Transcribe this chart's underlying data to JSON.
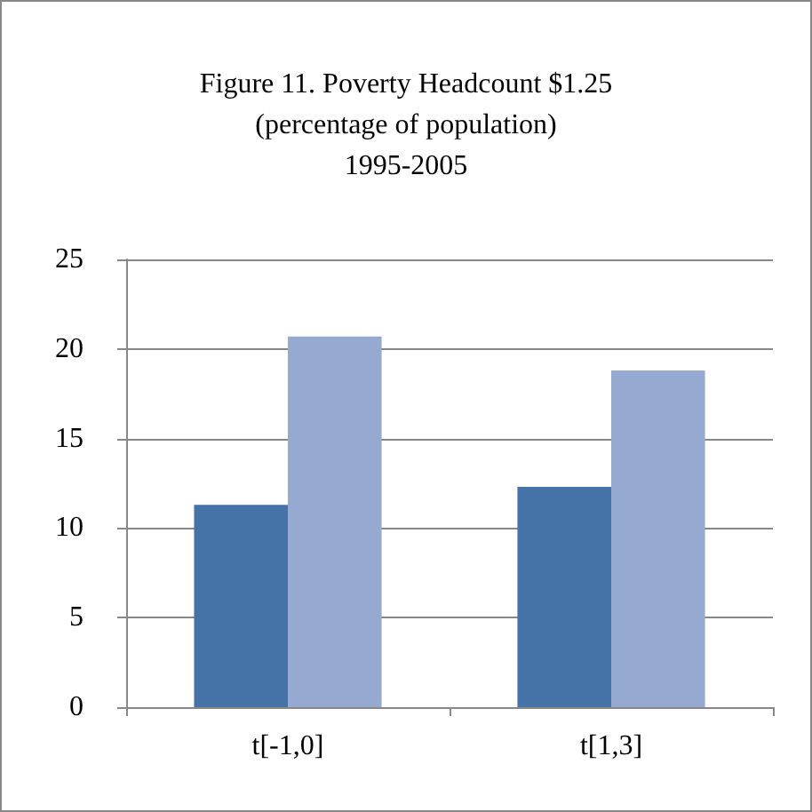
{
  "chart_data": {
    "type": "bar",
    "title": "Figure 11. Poverty Headcount $1.25\n(percentage of population)\n1995-2005",
    "categories": [
      "t[-1,0]",
      "t[1,3]"
    ],
    "series": [
      {
        "color": "#4573a7",
        "values": [
          11.3,
          12.3
        ]
      },
      {
        "color": "#95a9d1",
        "values": [
          20.7,
          18.8
        ]
      }
    ],
    "ylim": [
      0,
      25
    ],
    "yticks": [
      0,
      5,
      10,
      15,
      20,
      25
    ],
    "grid": "y"
  }
}
